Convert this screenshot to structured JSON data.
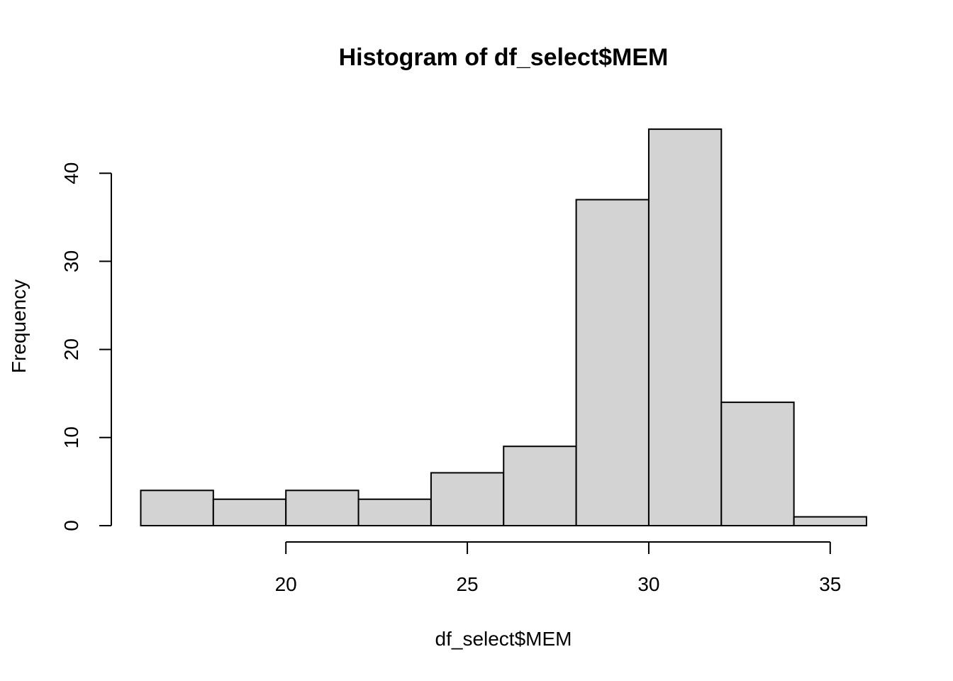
{
  "chart_data": {
    "type": "bar",
    "subtype": "histogram",
    "title": "Histogram of df_select$MEM",
    "xlabel": "df_select$MEM",
    "ylabel": "Frequency",
    "bin_edges": [
      16,
      18,
      20,
      22,
      24,
      26,
      28,
      30,
      32,
      34,
      36
    ],
    "categories": [
      "16-18",
      "18-20",
      "20-22",
      "22-24",
      "24-26",
      "26-28",
      "28-30",
      "30-32",
      "32-34",
      "34-36"
    ],
    "values": [
      4,
      3,
      4,
      3,
      6,
      9,
      37,
      45,
      14,
      1
    ],
    "xlim": [
      16,
      36
    ],
    "ylim": [
      0,
      45
    ],
    "x_ticks": [
      20,
      25,
      30,
      35
    ],
    "x_tick_labels": [
      "20",
      "25",
      "30",
      "35"
    ],
    "y_ticks": [
      0,
      10,
      20,
      30,
      40
    ],
    "y_tick_labels": [
      "0",
      "10",
      "20",
      "30",
      "40"
    ],
    "bar_color": "#d3d3d3",
    "border_color": "#000000",
    "grid": false
  }
}
